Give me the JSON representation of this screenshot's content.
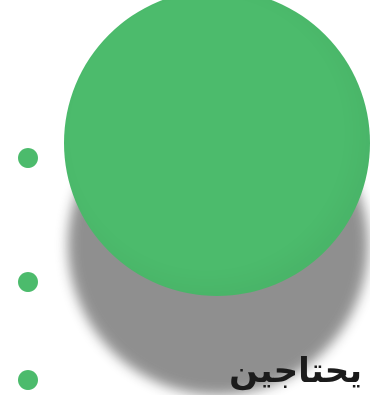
{
  "colors": {
    "accent_green": "#4cbb6c",
    "shadow_gray": "#8a8a8a",
    "text": "#1b1b1b",
    "background": "#ffffff"
  },
  "caption": {
    "text": "يحتاجين"
  }
}
